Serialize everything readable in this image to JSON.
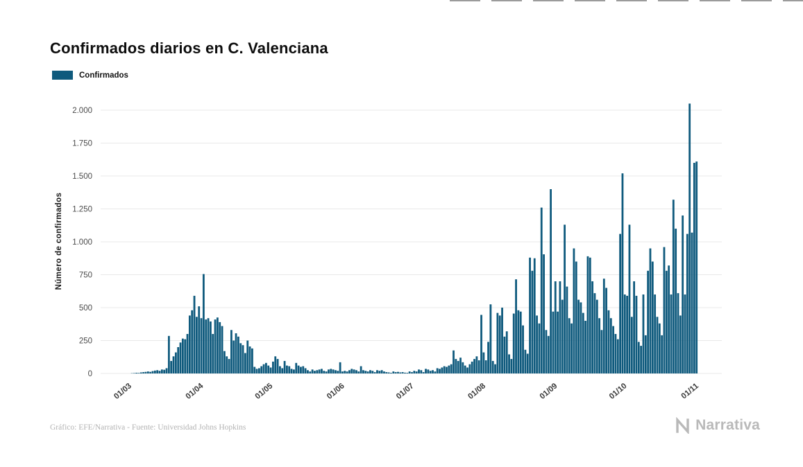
{
  "footer": {
    "credit": "Gráfico: EFE/Narrativa - Fuente: Universidad Johns Hopkins"
  },
  "branding": {
    "name": "Narrativa"
  },
  "chart_data": {
    "type": "bar",
    "title": "Confirmados diarios en C. Valenciana",
    "legend": "Confirmados",
    "ylabel": "Número de confirmados",
    "bar_color": "#0f5a7d",
    "grid": true,
    "ylim": [
      0,
      2000
    ],
    "y_ticks": [
      {
        "label": "0",
        "value": 0
      },
      {
        "label": "250",
        "value": 250
      },
      {
        "label": "500",
        "value": 500
      },
      {
        "label": "750",
        "value": 750
      },
      {
        "label": "1.000",
        "value": 1000
      },
      {
        "label": "1.250",
        "value": 1250
      },
      {
        "label": "1.500",
        "value": 1500
      },
      {
        "label": "1.750",
        "value": 1750
      },
      {
        "label": "2.000",
        "value": 2000
      }
    ],
    "x_ticks": [
      {
        "label": "01/03",
        "day": 0
      },
      {
        "label": "01/04",
        "day": 31
      },
      {
        "label": "01/05",
        "day": 61
      },
      {
        "label": "01/06",
        "day": 92
      },
      {
        "label": "01/07",
        "day": 122
      },
      {
        "label": "01/08",
        "day": 153
      },
      {
        "label": "01/09",
        "day": 184
      },
      {
        "label": "01/10",
        "day": 214
      },
      {
        "label": "01/11",
        "day": 245
      }
    ],
    "values": [
      2,
      3,
      5,
      4,
      8,
      10,
      12,
      15,
      12,
      18,
      22,
      25,
      20,
      30,
      28,
      40,
      285,
      95,
      130,
      160,
      200,
      235,
      265,
      260,
      300,
      440,
      480,
      590,
      430,
      510,
      420,
      755,
      410,
      420,
      395,
      300,
      410,
      425,
      390,
      360,
      170,
      130,
      110,
      330,
      250,
      305,
      280,
      230,
      215,
      155,
      250,
      205,
      190,
      50,
      35,
      40,
      55,
      70,
      80,
      60,
      45,
      90,
      130,
      110,
      55,
      40,
      95,
      60,
      55,
      35,
      30,
      80,
      60,
      50,
      55,
      40,
      25,
      15,
      30,
      20,
      25,
      30,
      35,
      20,
      15,
      30,
      35,
      30,
      25,
      20,
      85,
      15,
      20,
      15,
      25,
      35,
      30,
      25,
      15,
      55,
      25,
      20,
      15,
      25,
      20,
      10,
      25,
      20,
      25,
      15,
      10,
      8,
      5,
      15,
      10,
      12,
      8,
      10,
      6,
      5,
      15,
      10,
      20,
      15,
      30,
      25,
      10,
      35,
      30,
      20,
      25,
      15,
      40,
      35,
      45,
      55,
      50,
      60,
      70,
      175,
      110,
      95,
      120,
      85,
      60,
      45,
      70,
      90,
      110,
      130,
      100,
      445,
      160,
      100,
      240,
      525,
      95,
      70,
      460,
      440,
      500,
      280,
      320,
      145,
      110,
      455,
      715,
      480,
      470,
      365,
      180,
      150,
      880,
      780,
      875,
      440,
      380,
      1260,
      905,
      330,
      285,
      1400,
      470,
      700,
      470,
      700,
      560,
      1130,
      660,
      420,
      380,
      950,
      850,
      560,
      540,
      460,
      400,
      890,
      880,
      700,
      610,
      560,
      420,
      330,
      720,
      650,
      480,
      420,
      360,
      300,
      260,
      1060,
      1520,
      600,
      590,
      1130,
      430,
      700,
      590,
      240,
      210,
      600,
      290,
      780,
      950,
      850,
      600,
      430,
      380,
      290,
      960,
      780,
      820,
      600,
      1320,
      1100,
      610,
      440,
      1200,
      600,
      1060,
      2050,
      1070,
      1600,
      1610
    ]
  }
}
